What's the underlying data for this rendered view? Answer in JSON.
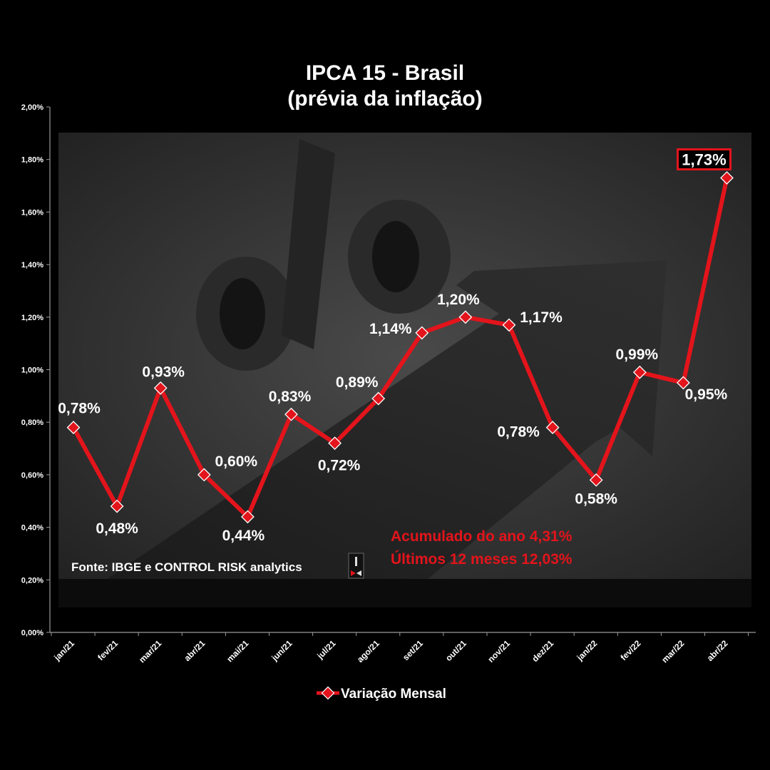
{
  "chart_data": {
    "type": "line",
    "title": [
      "IPCA 15 - Brasil",
      "(prévia da inflação)"
    ],
    "categories": [
      "jan/21",
      "fev/21",
      "mar/21",
      "abr/21",
      "mai/21",
      "jun/21",
      "jul/21",
      "ago/21",
      "set/21",
      "out/21",
      "nov/21",
      "dez/21",
      "jan/22",
      "fev/22",
      "mar/22",
      "abr/22"
    ],
    "series": [
      {
        "name": "Variação Mensal",
        "values": [
          0.78,
          0.48,
          0.93,
          0.6,
          0.44,
          0.83,
          0.72,
          0.89,
          1.14,
          1.2,
          1.17,
          0.78,
          0.58,
          0.99,
          0.95,
          1.73
        ],
        "labels": [
          "0,78%",
          "0,48%",
          "0,93%",
          "0,60%",
          "0,44%",
          "0,83%",
          "0,72%",
          "0,89%",
          "1,14%",
          "1,20%",
          "1,17%",
          "0,78%",
          "0,58%",
          "0,99%",
          "0,95%",
          "1,73%"
        ],
        "color": "#e3141b"
      }
    ],
    "ylim": [
      0,
      2.0
    ],
    "yticks": [
      0,
      0.2,
      0.4,
      0.6,
      0.8,
      1.0,
      1.2,
      1.4,
      1.6,
      1.8,
      2.0
    ],
    "ytick_labels": [
      "0,00%",
      "0,20%",
      "0,40%",
      "0,60%",
      "0,80%",
      "1,00%",
      "1,20%",
      "1,40%",
      "1,60%",
      "1,80%",
      "2,00%"
    ],
    "highlighted_point": "abr/22",
    "legend_position": "bottom-center",
    "grid": false
  },
  "annotations": {
    "source": "Fonte: IBGE e CONTROL RISK analytics",
    "accumulated_year": "Acumulado  do ano 4,31%",
    "last_12_months": "Últimos  12 meses 12,03%"
  },
  "colors": {
    "background": "#000000",
    "line": "#e3141b",
    "text": "#ffffff",
    "accent_text": "#e3141b"
  },
  "icons": {
    "source_logo": "control-risk-logo-icon"
  }
}
